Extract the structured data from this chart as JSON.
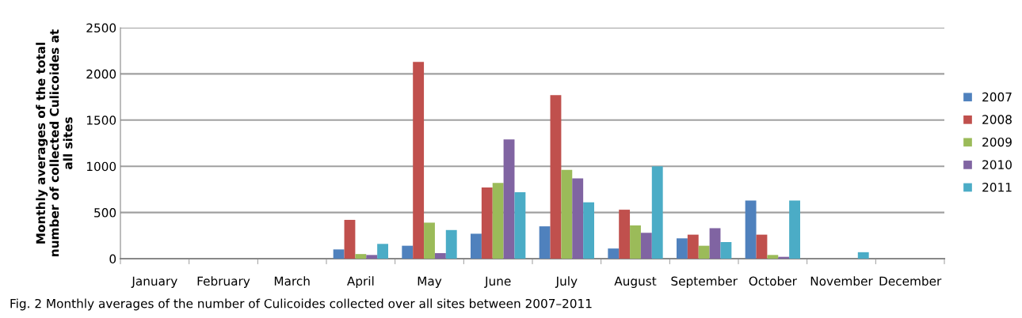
{
  "chart_data": {
    "type": "bar",
    "ylabel": "Monthly averages of the total\nnumber of collected Culicoides at\nall sites",
    "categories": [
      "January",
      "February",
      "March",
      "April",
      "May",
      "June",
      "July",
      "August",
      "September",
      "October",
      "November",
      "December"
    ],
    "series": [
      {
        "name": "2007",
        "color": "#4f81bd",
        "values": [
          0,
          0,
          0,
          100,
          140,
          270,
          350,
          110,
          220,
          630,
          0,
          0
        ]
      },
      {
        "name": "2008",
        "color": "#c0504d",
        "values": [
          0,
          0,
          0,
          420,
          2130,
          770,
          1770,
          530,
          260,
          260,
          0,
          0
        ]
      },
      {
        "name": "2009",
        "color": "#9bbb59",
        "values": [
          0,
          0,
          0,
          50,
          390,
          820,
          960,
          360,
          140,
          40,
          0,
          0
        ]
      },
      {
        "name": "2010",
        "color": "#8064a2",
        "values": [
          0,
          0,
          0,
          40,
          60,
          1290,
          870,
          280,
          330,
          20,
          0,
          0
        ]
      },
      {
        "name": "2011",
        "color": "#4bacc6",
        "values": [
          0,
          0,
          0,
          160,
          310,
          720,
          610,
          1000,
          180,
          630,
          70,
          0
        ]
      }
    ],
    "ylim": [
      0,
      2500
    ],
    "yticks": [
      0,
      500,
      1000,
      1500,
      2000,
      2500
    ],
    "grid": "y",
    "legend": "right",
    "annotations": [
      "Fig. 2 Monthly averages of the number of Culicoides collected over all sites between 2007–2011"
    ]
  }
}
